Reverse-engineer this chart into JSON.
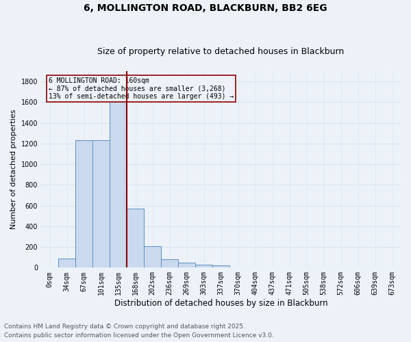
{
  "title_line1": "6, MOLLINGTON ROAD, BLACKBURN, BB2 6EG",
  "title_line2": "Size of property relative to detached houses in Blackburn",
  "xlabel": "Distribution of detached houses by size in Blackburn",
  "ylabel": "Number of detached properties",
  "bar_labels": [
    "0sqm",
    "34sqm",
    "67sqm",
    "101sqm",
    "135sqm",
    "168sqm",
    "202sqm",
    "236sqm",
    "269sqm",
    "303sqm",
    "337sqm",
    "370sqm",
    "404sqm",
    "437sqm",
    "471sqm",
    "505sqm",
    "538sqm",
    "572sqm",
    "606sqm",
    "639sqm",
    "673sqm"
  ],
  "bar_values": [
    0,
    90,
    1230,
    1230,
    1650,
    570,
    210,
    80,
    50,
    30,
    20,
    0,
    0,
    0,
    0,
    0,
    0,
    0,
    0,
    0,
    0
  ],
  "bar_color": "#cad9ed",
  "bar_edge_color": "#5b8ec4",
  "vline_color": "#8b0000",
  "annotation_box_text": "6 MOLLINGTON ROAD: 160sqm\n← 87% of detached houses are smaller (3,268)\n13% of semi-detached houses are larger (493) →",
  "annotation_box_color": "#8b0000",
  "ylim": [
    0,
    1900
  ],
  "yticks": [
    0,
    200,
    400,
    600,
    800,
    1000,
    1200,
    1400,
    1600,
    1800
  ],
  "background_color": "#edf2f9",
  "grid_color": "#d8e4f0",
  "footer_line1": "Contains HM Land Registry data © Crown copyright and database right 2025.",
  "footer_line2": "Contains public sector information licensed under the Open Government Licence v3.0.",
  "title_fontsize": 10,
  "subtitle_fontsize": 9,
  "xlabel_fontsize": 8.5,
  "ylabel_fontsize": 8,
  "tick_fontsize": 7,
  "footer_fontsize": 6.5
}
